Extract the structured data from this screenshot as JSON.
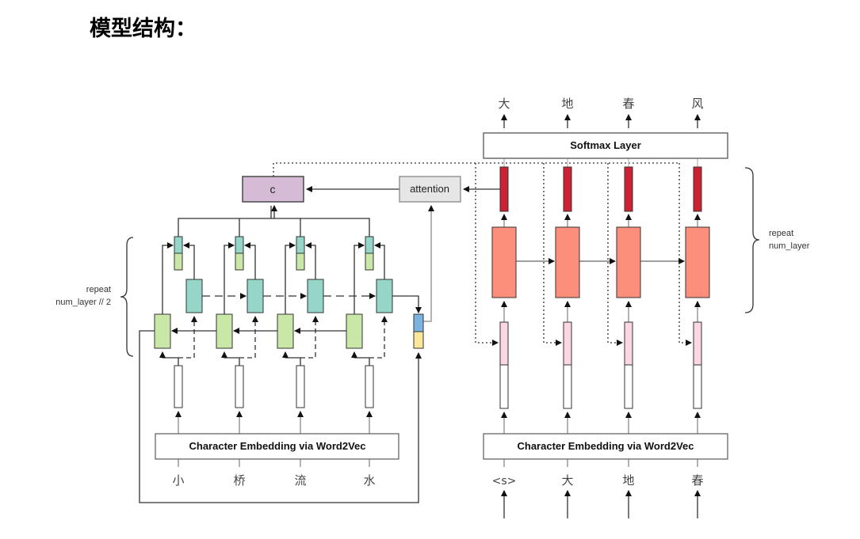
{
  "title": "模型结构：",
  "encoder": {
    "embedding_label": "Character Embedding via Word2Vec",
    "inputs": [
      "小",
      "桥",
      "流",
      "水"
    ],
    "repeat_label_1": "repeat",
    "repeat_label_2": "num_layer // 2",
    "context_label": "c",
    "attention_label": "attention"
  },
  "decoder": {
    "softmax_label": "Softmax Layer",
    "embedding_label": "Character Embedding via Word2Vec",
    "inputs": [
      "<s>",
      "大",
      "地",
      "春"
    ],
    "outputs": [
      "大",
      "地",
      "春",
      "风"
    ],
    "repeat_label_1": "repeat",
    "repeat_label_2": "num_layer"
  },
  "colors": {
    "context": "#d5bbd5",
    "attention": "#e6e6e6",
    "forward": "#c9e8a8",
    "backward": "#96d6c8",
    "decoder_rnn": "#fb8f7b",
    "decoder_out": "#cc2233",
    "decoder_emb": "#fbd6e3",
    "state_top": "#7ab4e0",
    "state_bottom": "#fbe79a"
  }
}
